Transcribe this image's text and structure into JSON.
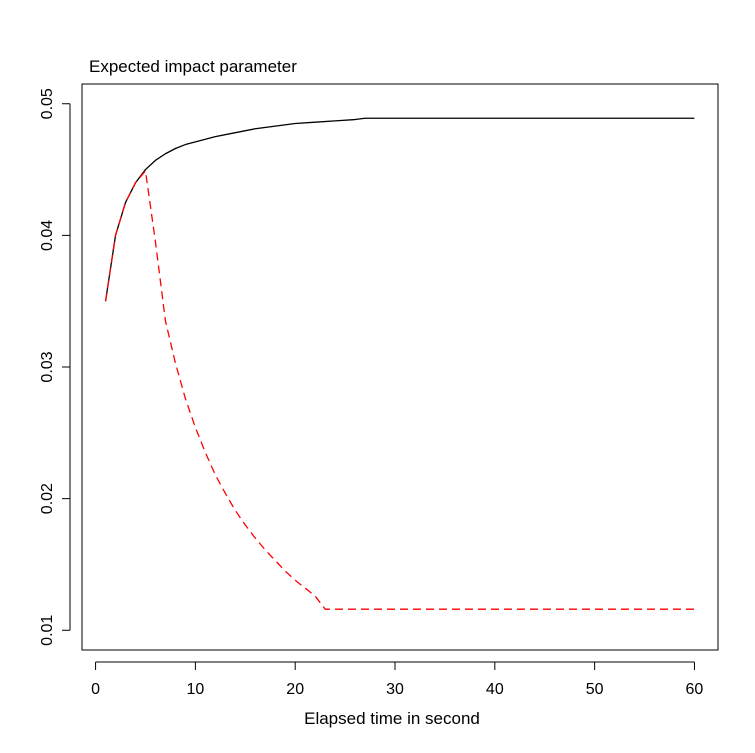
{
  "chart_data": {
    "type": "line",
    "title": "Expected impact parameter",
    "xlabel": "Elapsed time in second",
    "ylabel": "",
    "xlim": [
      -1.36,
      62.36
    ],
    "ylim": [
      0.0085,
      0.0515
    ],
    "xticks": [
      0,
      10,
      20,
      30,
      40,
      50,
      60
    ],
    "yticks": [
      0.01,
      0.02,
      0.03,
      0.04,
      0.05
    ],
    "xtick_labels": [
      "0",
      "10",
      "20",
      "30",
      "40",
      "50",
      "60"
    ],
    "ytick_labels": [
      "0.01",
      "0.02",
      "0.03",
      "0.04",
      "0.05"
    ],
    "grid": false,
    "legend": "none",
    "series": [
      {
        "color": "#000000",
        "line_style": "solid",
        "x": [
          1,
          2,
          3,
          4,
          5,
          6,
          7,
          8,
          9,
          10,
          12,
          14,
          16,
          18,
          20,
          22,
          24,
          26,
          27,
          30,
          40,
          50,
          60
        ],
        "y": [
          0.035,
          0.04,
          0.0425,
          0.044,
          0.045,
          0.0457,
          0.0462,
          0.0466,
          0.0469,
          0.0471,
          0.0475,
          0.0478,
          0.0481,
          0.0483,
          0.0485,
          0.0486,
          0.0487,
          0.0488,
          0.0489,
          0.0489,
          0.0489,
          0.0489,
          0.0489
        ]
      },
      {
        "color": "#ff0000",
        "line_style": "dashed",
        "x": [
          1,
          2,
          3,
          4,
          5,
          6,
          7,
          8,
          9,
          10,
          11,
          12,
          13,
          14,
          15,
          16,
          17,
          18,
          19,
          20,
          21,
          22,
          23,
          25,
          30,
          40,
          50,
          60
        ],
        "y": [
          0.035,
          0.04,
          0.0425,
          0.044,
          0.0449,
          0.0395,
          0.0335,
          0.0303,
          0.0276,
          0.0254,
          0.0235,
          0.0218,
          0.0204,
          0.0191,
          0.018,
          0.017,
          0.0161,
          0.0153,
          0.0145,
          0.0138,
          0.0132,
          0.0126,
          0.0116,
          0.0116,
          0.0116,
          0.0116,
          0.0116,
          0.0116
        ]
      }
    ]
  }
}
